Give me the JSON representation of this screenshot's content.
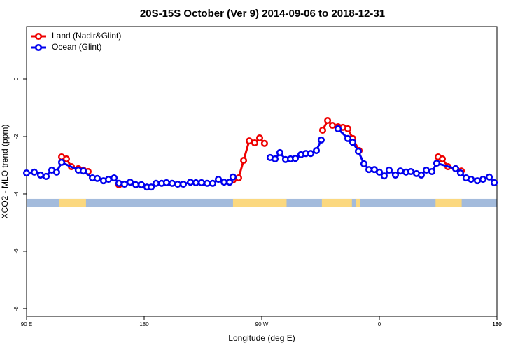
{
  "chart_data": {
    "type": "line",
    "title": "20S-15S October (Ver 9)   2014-09-06 to 2018-12-31",
    "x_label": "Longitude (deg E)",
    "y_label": "XCO2 - MLO trend (ppm)",
    "xlim": [
      90,
      450
    ],
    "ylim": [
      -8.27,
      1.83
    ],
    "xticks": [
      {
        "value": 90,
        "label": "90 E"
      },
      180,
      {
        "value": 270,
        "label": "90 W"
      },
      {
        "value": 360,
        "label": "0"
      },
      {
        "value": 450,
        "label": "180"
      },
      {
        "value": 450,
        "label": "180"
      }
    ],
    "yticks": [
      0,
      -2,
      -4,
      -6,
      -8
    ],
    "legend": "top-left",
    "surface_band": {
      "ylim": [
        -4.17,
        -4.45
      ],
      "ocean_color": "#a3bbdc",
      "land_color": "#fbd87f",
      "land_ranges": [
        [
          115.2,
          135.5
        ],
        [
          248,
          289
        ],
        [
          316,
          339
        ],
        [
          342,
          345.5
        ],
        [
          403,
          423
        ]
      ]
    },
    "series": [
      {
        "name": "Land (Nadir&Glint)",
        "color": "#ee0000",
        "x": [
          116.8,
          120.5,
          124.3,
          129.6,
          133.4,
          137.1,
          150,
          160.7,
          200,
          248.0,
          252.3,
          256.1,
          260.4,
          264.6,
          268.4,
          272.1,
          290,
          316.6,
          320.4,
          324.1,
          328.4,
          332.1,
          335.9,
          339.6,
          344.5,
          380,
          405.0,
          408.2,
          412.5,
          418.4,
          422.7
        ],
        "values": [
          -2.71,
          -2.78,
          -3.05,
          -3.12,
          -3.17,
          -3.22,
          null,
          -3.68,
          null,
          -3.51,
          -3.44,
          -2.83,
          -2.15,
          -2.22,
          -2.05,
          -2.24,
          null,
          -1.78,
          -1.44,
          -1.61,
          -1.66,
          -1.68,
          -1.73,
          -2.07,
          -2.49,
          null,
          -2.71,
          -2.78,
          -3.05,
          -3.12,
          -3.2
        ]
      },
      {
        "name": "Ocean (Glint)",
        "color": "#0000ee",
        "x": [
          90.0,
          95.9,
          100.7,
          105.0,
          109.3,
          113.0,
          116.8,
          129.6,
          133.4,
          140.4,
          144.1,
          148.9,
          152.7,
          157.0,
          160.7,
          165.0,
          169.3,
          173.6,
          177.9,
          182.1,
          185.4,
          189.1,
          193.4,
          197.1,
          201.4,
          205.7,
          210.0,
          215.4,
          219.6,
          223.9,
          228.2,
          232.5,
          236.8,
          241.1,
          245.4,
          248.0,
          262,
          276.4,
          280.2,
          283.9,
          288.2,
          292.0,
          295.7,
          300.0,
          303.8,
          307.5,
          311.8,
          315.5,
          322,
          328.4,
          335.9,
          339.6,
          343.9,
          348.2,
          352.0,
          356.2,
          360.0,
          363.7,
          367.5,
          372.3,
          376.1,
          380.4,
          384.1,
          388.4,
          392.1,
          395.9,
          400.2,
          403.9,
          418.4,
          422.1,
          426.4,
          430.2,
          435.0,
          439.3,
          444.1,
          447.9
        ],
        "values": [
          -3.27,
          -3.24,
          -3.34,
          -3.39,
          -3.17,
          -3.24,
          -2.9,
          -3.17,
          -3.2,
          -3.44,
          -3.46,
          -3.54,
          -3.49,
          -3.44,
          -3.63,
          -3.66,
          -3.59,
          -3.68,
          -3.68,
          -3.76,
          -3.76,
          -3.63,
          -3.63,
          -3.61,
          -3.63,
          -3.66,
          -3.66,
          -3.59,
          -3.61,
          -3.61,
          -3.63,
          -3.63,
          -3.49,
          -3.59,
          -3.59,
          -3.41,
          null,
          -2.73,
          -2.78,
          -2.56,
          -2.8,
          -2.78,
          -2.76,
          -2.63,
          -2.59,
          -2.59,
          -2.49,
          -2.12,
          null,
          -1.73,
          -2.07,
          -2.2,
          -2.51,
          -2.95,
          -3.15,
          -3.15,
          -3.24,
          -3.37,
          -3.17,
          -3.34,
          -3.2,
          -3.24,
          -3.22,
          -3.29,
          -3.34,
          -3.17,
          -3.22,
          -2.93,
          -3.12,
          -3.27,
          -3.44,
          -3.49,
          -3.54,
          -3.49,
          -3.41,
          -3.61
        ]
      }
    ]
  }
}
